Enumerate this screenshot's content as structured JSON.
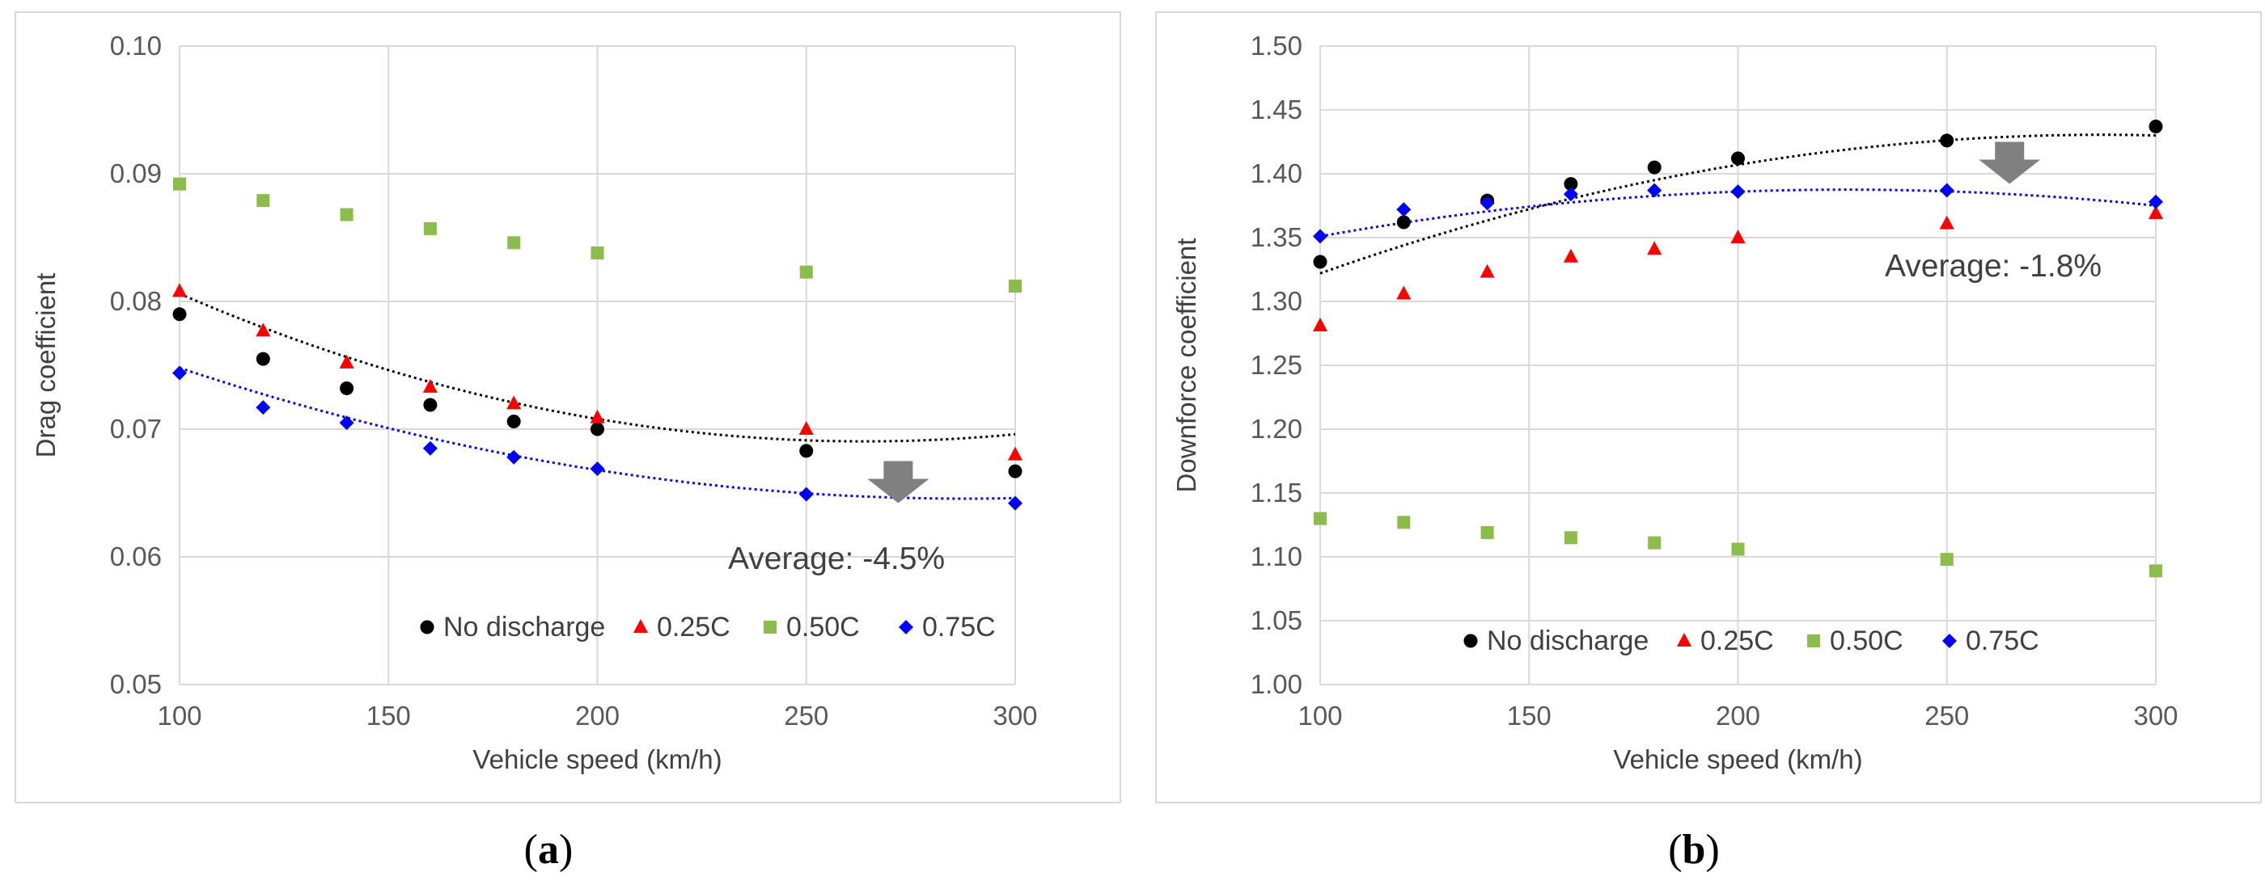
{
  "chart_data": [
    {
      "type": "scatter",
      "panel_label": "a",
      "xlabel": "Vehicle speed (km/h)",
      "ylabel": "Drag coefficient",
      "xlim": [
        100,
        300
      ],
      "ylim": [
        0.05,
        0.1
      ],
      "xticks": [
        100,
        150,
        200,
        250,
        300
      ],
      "yticks": [
        "0.05",
        "0.06",
        "0.07",
        "0.08",
        "0.09",
        "0.10"
      ],
      "grid": "vertical and horizontal",
      "legend_position": "bottom-right",
      "annotation": "Average:  -4.5%",
      "arrow": {
        "x": 272,
        "y": 0.0675,
        "direction": "down"
      },
      "x": [
        100,
        120,
        140,
        160,
        180,
        200,
        250,
        300
      ],
      "series": [
        {
          "name": "No discharge",
          "marker": "circle",
          "color": "#000000",
          "values": [
            0.079,
            0.0755,
            0.0732,
            0.0719,
            0.0706,
            0.07,
            0.0683,
            0.0667
          ],
          "trendline": {
            "color": "#000000",
            "style": "dotted",
            "poly": [
              0.099,
              -0.000227,
              4.3e-07
            ]
          }
        },
        {
          "name": "0.25C",
          "marker": "triangle",
          "color": "#ff0000",
          "values": [
            0.0808,
            0.0777,
            0.0752,
            0.0733,
            0.072,
            0.0709,
            0.07,
            0.068
          ]
        },
        {
          "name": "0.50C",
          "marker": "square",
          "color": "#8cbd4a",
          "values": [
            0.0892,
            0.0879,
            0.0868,
            0.0857,
            0.0846,
            0.0838,
            0.0823,
            0.0812
          ]
        },
        {
          "name": "0.75C",
          "marker": "diamond",
          "color": "#0000ff",
          "values": [
            0.0744,
            0.0717,
            0.0705,
            0.0685,
            0.0678,
            0.0669,
            0.0649,
            0.0642
          ],
          "trendline": {
            "color": "#0000ff",
            "style": "dotted",
            "poly": [
              0.0886,
              -0.000167,
              2.9e-07
            ]
          }
        }
      ]
    },
    {
      "type": "scatter",
      "panel_label": "b",
      "xlabel": "Vehicle speed (km/h)",
      "ylabel": "Downforce coefficient",
      "xlim": [
        100,
        300
      ],
      "ylim": [
        1.0,
        1.5
      ],
      "xticks": [
        100,
        150,
        200,
        250,
        300
      ],
      "yticks": [
        "1.00",
        "1.05",
        "1.10",
        "1.15",
        "1.20",
        "1.25",
        "1.30",
        "1.35",
        "1.40",
        "1.45",
        "1.50"
      ],
      "grid": "vertical and horizontal",
      "legend_position": "bottom-right",
      "annotation": "Average:  -1.8%",
      "arrow": {
        "x": 265,
        "y": 1.425,
        "direction": "down"
      },
      "x": [
        100,
        120,
        140,
        160,
        180,
        200,
        250,
        300
      ],
      "series": [
        {
          "name": "No discharge",
          "marker": "circle",
          "color": "#000000",
          "values": [
            1.331,
            1.362,
            1.379,
            1.392,
            1.405,
            1.412,
            1.426,
            1.437
          ],
          "trendline": {
            "color": "#000000",
            "style": "dotted",
            "poly": [
              1.175,
              0.00178,
              -3.1e-06
            ]
          }
        },
        {
          "name": "0.25C",
          "marker": "triangle",
          "color": "#ff0000",
          "values": [
            1.281,
            1.306,
            1.323,
            1.335,
            1.341,
            1.35,
            1.361,
            1.369
          ]
        },
        {
          "name": "0.50C",
          "marker": "square",
          "color": "#8cbd4a",
          "values": [
            1.13,
            1.127,
            1.119,
            1.115,
            1.111,
            1.106,
            1.098,
            1.089
          ]
        },
        {
          "name": "0.75C",
          "marker": "diamond",
          "color": "#0000ff",
          "values": [
            1.351,
            1.372,
            1.377,
            1.384,
            1.387,
            1.386,
            1.387,
            1.378
          ],
          "trendline": {
            "color": "#0000ff",
            "style": "dotted",
            "poly": [
              1.27,
              0.00104,
              -2.3e-06
            ]
          }
        }
      ]
    }
  ],
  "captions": {
    "a": {
      "open": "(",
      "letter": "a",
      "close": ")"
    },
    "b": {
      "open": "(",
      "letter": "b",
      "close": ")"
    }
  }
}
